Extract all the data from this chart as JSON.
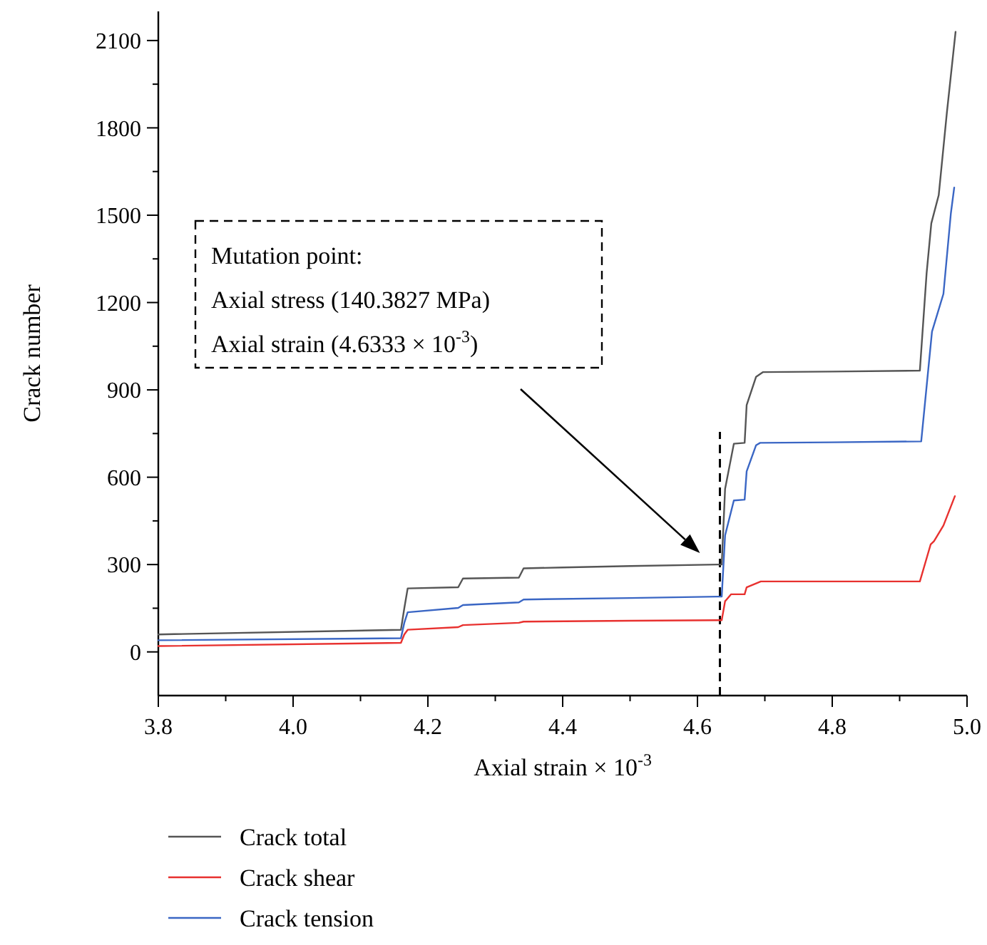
{
  "chart_data": {
    "type": "line",
    "xlabel": "Axial strain × 10$^{-3}$",
    "ylabel": "Crack number",
    "xlim": [
      3.8,
      5.0
    ],
    "xticks": [
      3.8,
      {
        "value": 3.9,
        "label": null
      },
      {
        "value": 4.0,
        "label": "4.0"
      },
      {
        "value": 4.1,
        "label": null
      },
      4.2,
      {
        "value": 4.3,
        "label": null
      },
      4.4,
      {
        "value": 4.5,
        "label": null
      },
      4.6,
      {
        "value": 4.7,
        "label": null
      },
      4.8,
      {
        "value": 4.9,
        "label": null
      },
      {
        "value": 5.0,
        "label": "5.0"
      }
    ],
    "ylim": [
      -150,
      2200
    ],
    "yticks": [
      0,
      {
        "value": 150,
        "label": null
      },
      300,
      {
        "value": 450,
        "label": null
      },
      600,
      {
        "value": 750,
        "label": null
      },
      900,
      {
        "value": 1050,
        "label": null
      },
      1200,
      {
        "value": 1350,
        "label": null
      },
      1500,
      {
        "value": 1650,
        "label": null
      },
      1800,
      {
        "value": 1950,
        "label": null
      },
      2100
    ],
    "legend": "bottom",
    "series": [
      {
        "name": "Crack total",
        "color": "#555555",
        "x": [
          3.8,
          4.16,
          4.165,
          4.17,
          4.245,
          4.252,
          4.335,
          4.342,
          4.4,
          4.5,
          4.63,
          4.636,
          4.641,
          4.654,
          4.67,
          4.673,
          4.687,
          4.697,
          4.8,
          4.93,
          4.94,
          4.947,
          4.958,
          4.97,
          4.983
        ],
        "values": [
          60,
          76,
          150,
          218,
          222,
          252,
          255,
          287,
          290,
          295,
          300,
          300,
          560,
          715,
          718,
          848,
          945,
          961,
          963,
          966,
          1300,
          1472,
          1569,
          1850,
          2130
        ]
      },
      {
        "name": "Crack shear",
        "color": "#e8312f",
        "x": [
          3.8,
          4.16,
          4.165,
          4.17,
          4.245,
          4.252,
          4.335,
          4.342,
          4.5,
          4.63,
          4.636,
          4.641,
          4.65,
          4.67,
          4.673,
          4.694,
          4.8,
          4.93,
          4.946,
          4.951,
          4.965,
          4.982
        ],
        "values": [
          20,
          31,
          60,
          76,
          85,
          92,
          100,
          104,
          107,
          109,
          109,
          174,
          198,
          198,
          222,
          242,
          242,
          242,
          369,
          380,
          434,
          535
        ]
      },
      {
        "name": "Crack tension",
        "color": "#3a66c4",
        "x": [
          3.8,
          4.16,
          4.165,
          4.17,
          4.245,
          4.252,
          4.335,
          4.342,
          4.5,
          4.63,
          4.636,
          4.641,
          4.654,
          4.67,
          4.673,
          4.687,
          4.693,
          4.8,
          4.932,
          4.948,
          4.965,
          4.976,
          4.981
        ],
        "values": [
          40,
          47,
          100,
          136,
          151,
          161,
          170,
          180,
          185,
          190,
          190,
          400,
          520,
          523,
          620,
          710,
          718,
          720,
          723,
          1100,
          1230,
          1506,
          1595
        ]
      }
    ],
    "ref_lines": [
      {
        "axis": "x",
        "value": 4.6333,
        "color": "#000000",
        "line_style": "dashed"
      }
    ],
    "annotations": [
      "Mutation point:\nAxial stress (140.3827 MPa)\nAxial strain (4.6333 × 10$^{-3}$)"
    ]
  }
}
